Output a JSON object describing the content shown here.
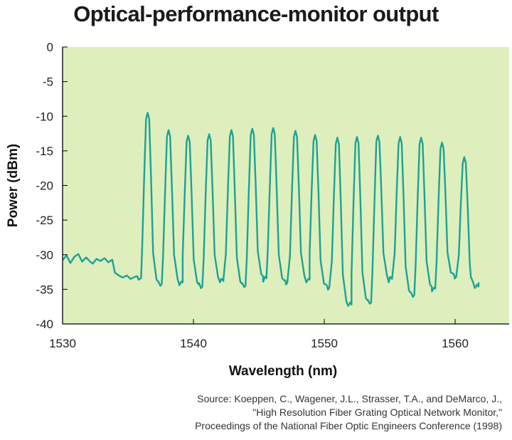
{
  "chart_data": {
    "type": "line",
    "title": "Optical-performance-monitor output",
    "xlabel": "Wavelength (nm)",
    "ylabel": "Power (dBm)",
    "xlim": [
      1530,
      1565
    ],
    "ylim": [
      -40,
      0
    ],
    "xticks": [
      1530,
      1540,
      1550,
      1560
    ],
    "yticks": [
      0,
      -5,
      -10,
      -15,
      -20,
      -25,
      -30,
      -35,
      -40
    ],
    "grid": false,
    "colors": {
      "background": "#dfeebd",
      "line": "#1aa394",
      "axis": "#000000"
    },
    "baseline": {
      "x": [
        1530.0,
        1530.3,
        1530.6,
        1530.9,
        1531.2,
        1531.5,
        1531.8,
        1532.0,
        1532.3,
        1532.6,
        1532.9,
        1533.2,
        1533.5,
        1533.8,
        1534.0,
        1534.3,
        1534.6,
        1534.9,
        1535.2,
        1535.5,
        1535.8,
        1536.0
      ],
      "y": [
        -30.8,
        -30.1,
        -31.2,
        -30.3,
        -29.9,
        -31.0,
        -30.4,
        -30.8,
        -31.3,
        -30.6,
        -30.9,
        -30.5,
        -31.1,
        -30.7,
        -32.6,
        -33.0,
        -33.3,
        -33.0,
        -33.5,
        -33.2,
        -33.6,
        -33.4
      ]
    },
    "peaks": [
      {
        "center": 1536.5,
        "power": -9.5,
        "floor_after": -34.2
      },
      {
        "center": 1538.1,
        "power": -12.0,
        "floor_after": -34.0
      },
      {
        "center": 1539.6,
        "power": -12.8,
        "floor_after": -34.6
      },
      {
        "center": 1541.2,
        "power": -12.6,
        "floor_after": -33.8
      },
      {
        "center": 1542.9,
        "power": -12.0,
        "floor_after": -34.5
      },
      {
        "center": 1544.5,
        "power": -11.8,
        "floor_after": -33.4
      },
      {
        "center": 1546.1,
        "power": -11.7,
        "floor_after": -34.0
      },
      {
        "center": 1547.8,
        "power": -12.1,
        "floor_after": -33.6
      },
      {
        "center": 1549.3,
        "power": -12.7,
        "floor_after": -34.8
      },
      {
        "center": 1551.0,
        "power": -13.1,
        "floor_after": -37.2
      },
      {
        "center": 1552.5,
        "power": -13.0,
        "floor_after": -36.9
      },
      {
        "center": 1554.1,
        "power": -12.8,
        "floor_after": -33.5
      },
      {
        "center": 1555.8,
        "power": -13.0,
        "floor_after": -35.8
      },
      {
        "center": 1557.4,
        "power": -13.1,
        "floor_after": -34.9
      },
      {
        "center": 1559.0,
        "power": -13.8,
        "floor_after": -33.2
      },
      {
        "center": 1560.7,
        "power": -15.9,
        "floor_after": -34.6
      }
    ],
    "end": {
      "x": [
        1561.2,
        1561.5,
        1561.8
      ],
      "y": [
        -33.2,
        -34.8,
        -34.0
      ]
    },
    "source_lines": [
      "Source: Koeppen, C., Wagener, J.L., Strasser, T.A., and DeMarco, J.,",
      "\"High Resolution Fiber Grating Optical Network Monitor,\"",
      "Proceedings of the National Fiber Optic Engineers Conference (1998)"
    ]
  }
}
